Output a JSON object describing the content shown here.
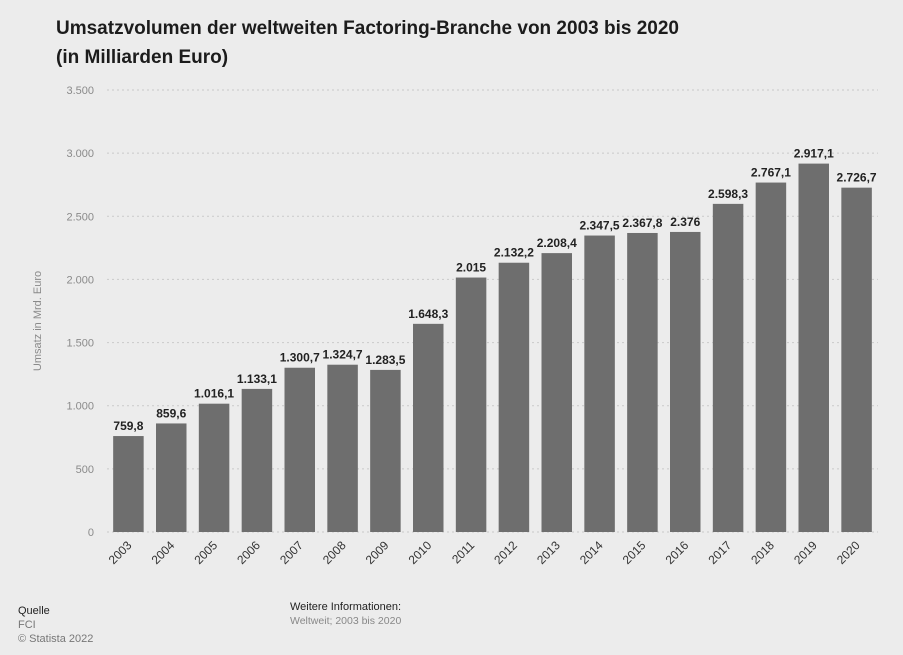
{
  "title": {
    "line1": "Umsatzvolumen der weltweiten Factoring-Branche von 2003 bis 2020",
    "line2": "(in Milliarden Euro)"
  },
  "chart_data": {
    "type": "bar",
    "title": "Umsatzvolumen der weltweiten Factoring-Branche von 2003 bis 2020 (in Milliarden Euro)",
    "xlabel": "",
    "ylabel": "Umsatz  in Mrd. Euro",
    "ylim": [
      0,
      3500
    ],
    "yticks": [
      0,
      500,
      1000,
      1500,
      2000,
      2500,
      3000,
      3500
    ],
    "ytick_labels": [
      "0",
      "500",
      "1.000",
      "1.500",
      "2.000",
      "2.500",
      "3.000",
      "3.500"
    ],
    "grid": true,
    "bar_color": "#6e6e6e",
    "categories": [
      "2003",
      "2004",
      "2005",
      "2006",
      "2007",
      "2008",
      "2009",
      "2010",
      "2011",
      "2012",
      "2013",
      "2014",
      "2015",
      "2016",
      "2017",
      "2018",
      "2019",
      "2020"
    ],
    "values": [
      759.8,
      859.6,
      1016.1,
      1133.1,
      1300.7,
      1324.7,
      1283.5,
      1648.3,
      2015,
      2132.2,
      2208.4,
      2347.5,
      2367.8,
      2376,
      2598.3,
      2767.1,
      2917.1,
      2726.7
    ],
    "value_labels": [
      "759,8",
      "859,6",
      "1.016,1",
      "1.133,1",
      "1.300,7",
      "1.324,7",
      "1.283,5",
      "1.648,3",
      "2.015",
      "2.132,2",
      "2.208,4",
      "2.347,5",
      "2.367,8",
      "2.376",
      "2.598,3",
      "2.767,1",
      "2.917,1",
      "2.726,7"
    ]
  },
  "footer": {
    "source_heading": "Quelle",
    "source": "FCI",
    "copyright": "© Statista 2022",
    "info_heading": "Weitere Informationen:",
    "info_text": "Weltweit; 2003 bis 2020"
  }
}
